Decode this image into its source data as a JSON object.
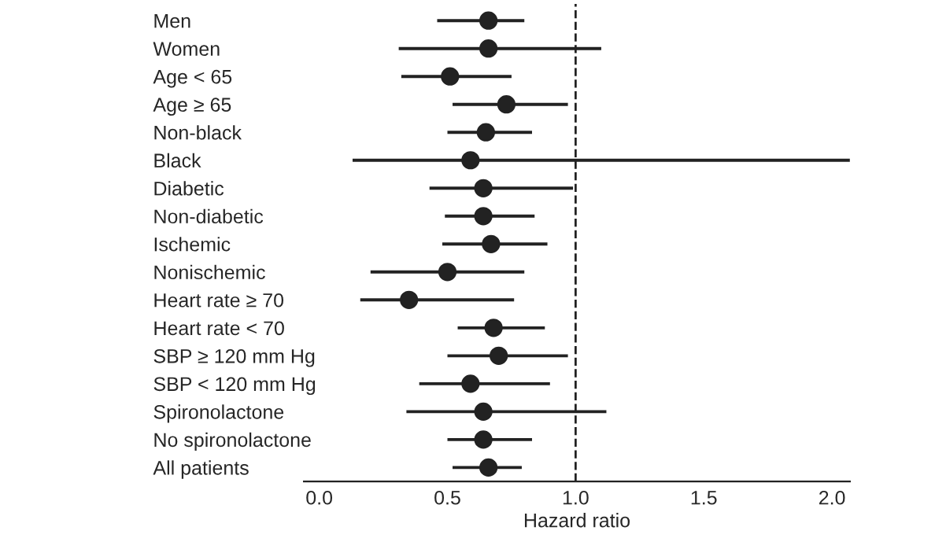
{
  "chart_data": {
    "type": "scatter",
    "orientation": "horizontal",
    "xlabel": "Hazard ratio",
    "categories": [
      "Men",
      "Women",
      "Age < 65",
      "Age ≥ 65",
      "Non-black",
      "Black",
      "Diabetic",
      "Non-diabetic",
      "Ischemic",
      "Nonischemic",
      "Heart rate ≥ 70",
      "Heart rate < 70",
      "SBP ≥ 120 mm Hg",
      "SBP < 120 mm Hg",
      "Spironolactone",
      "No spironolactone",
      "All patients"
    ],
    "values": [
      0.66,
      0.66,
      0.51,
      0.73,
      0.65,
      0.59,
      0.64,
      0.64,
      0.67,
      0.5,
      0.35,
      0.68,
      0.7,
      0.59,
      0.64,
      0.64,
      0.66
    ],
    "errors": [
      [
        0.46,
        0.8
      ],
      [
        0.31,
        1.1
      ],
      [
        0.32,
        0.75
      ],
      [
        0.52,
        0.97
      ],
      [
        0.5,
        0.83
      ],
      [
        0.13,
        2.07
      ],
      [
        0.43,
        0.99
      ],
      [
        0.49,
        0.84
      ],
      [
        0.48,
        0.89
      ],
      [
        0.2,
        0.8
      ],
      [
        0.16,
        0.76
      ],
      [
        0.54,
        0.88
      ],
      [
        0.5,
        0.97
      ],
      [
        0.39,
        0.9
      ],
      [
        0.34,
        1.12
      ],
      [
        0.5,
        0.83
      ],
      [
        0.52,
        0.79
      ]
    ],
    "colors": [
      "#222222",
      "#222222",
      "#222222",
      "#222222",
      "#222222",
      "#222222",
      "#222222",
      "#222222",
      "#222222",
      "#222222",
      "#222222",
      "#222222",
      "#222222",
      "#222222",
      "#222222",
      "#222222",
      "#222222"
    ],
    "marker": "circle",
    "xlim": [
      -0.06,
      2.07
    ],
    "xticks": [
      {
        "value": 0,
        "label": "0.0"
      },
      0.5,
      {
        "value": 1,
        "label": "1.0"
      },
      1.5,
      {
        "value": 2,
        "label": "2.0"
      }
    ],
    "ref_lines": [
      {
        "axis": "x",
        "value": 1,
        "line_style": "dashed",
        "color": "#222222"
      }
    ],
    "grid": false,
    "legend": false
  }
}
